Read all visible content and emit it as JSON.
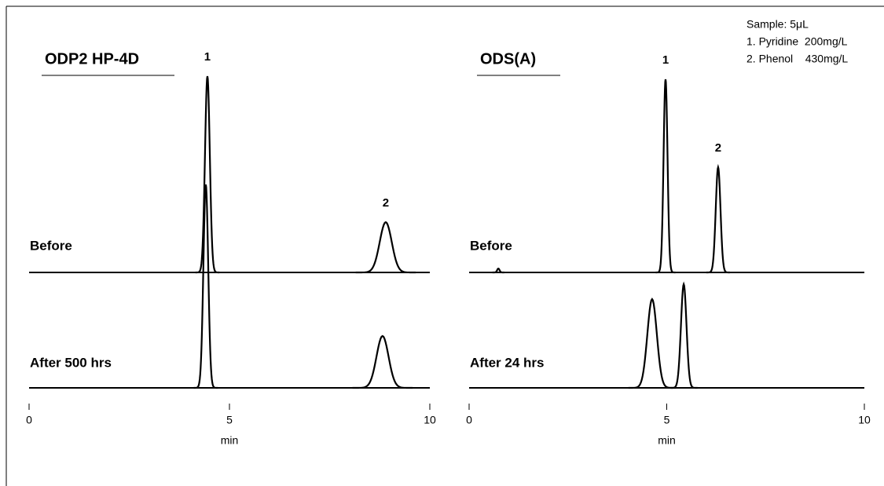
{
  "chart_data": [
    {
      "type": "chromatogram",
      "title": "ODP2 HP-4D",
      "xlim": [
        0,
        10
      ],
      "xticks": [
        0,
        5,
        10
      ],
      "xlabel": "min",
      "color": "#000000",
      "traces": [
        {
          "name": "Before",
          "peaks": [
            {
              "rt": 4.45,
              "height": 250,
              "sigma": 0.06,
              "label": "1"
            },
            {
              "rt": 8.9,
              "height": 64,
              "sigma": 0.15,
              "label": "2"
            }
          ]
        },
        {
          "name": "After 500 hrs",
          "peaks": [
            {
              "rt": 4.41,
              "height": 259,
              "sigma": 0.06
            },
            {
              "rt": 8.82,
              "height": 66,
              "sigma": 0.15
            }
          ]
        }
      ]
    },
    {
      "type": "chromatogram",
      "title": "ODS(A)",
      "xlim": [
        0,
        10
      ],
      "xticks": [
        0,
        5,
        10
      ],
      "xlabel": "min",
      "color": "#000000",
      "traces": [
        {
          "name": "Before",
          "peaks": [
            {
              "rt": 0.74,
              "height": 5,
              "sigma": 0.03
            },
            {
              "rt": 4.97,
              "height": 246,
              "sigma": 0.05,
              "label": "1"
            },
            {
              "rt": 6.3,
              "height": 134,
              "sigma": 0.06,
              "label": "2"
            }
          ]
        },
        {
          "name": "After 24 hrs",
          "peaks": [
            {
              "rt": 4.63,
              "height": 113,
              "sigma": 0.12
            },
            {
              "rt": 5.43,
              "height": 132,
              "sigma": 0.07
            }
          ]
        }
      ]
    }
  ],
  "sample": [
    "Sample: 5μL",
    "1. Pyridine  200mg/L",
    "2. Phenol    430mg/L"
  ]
}
